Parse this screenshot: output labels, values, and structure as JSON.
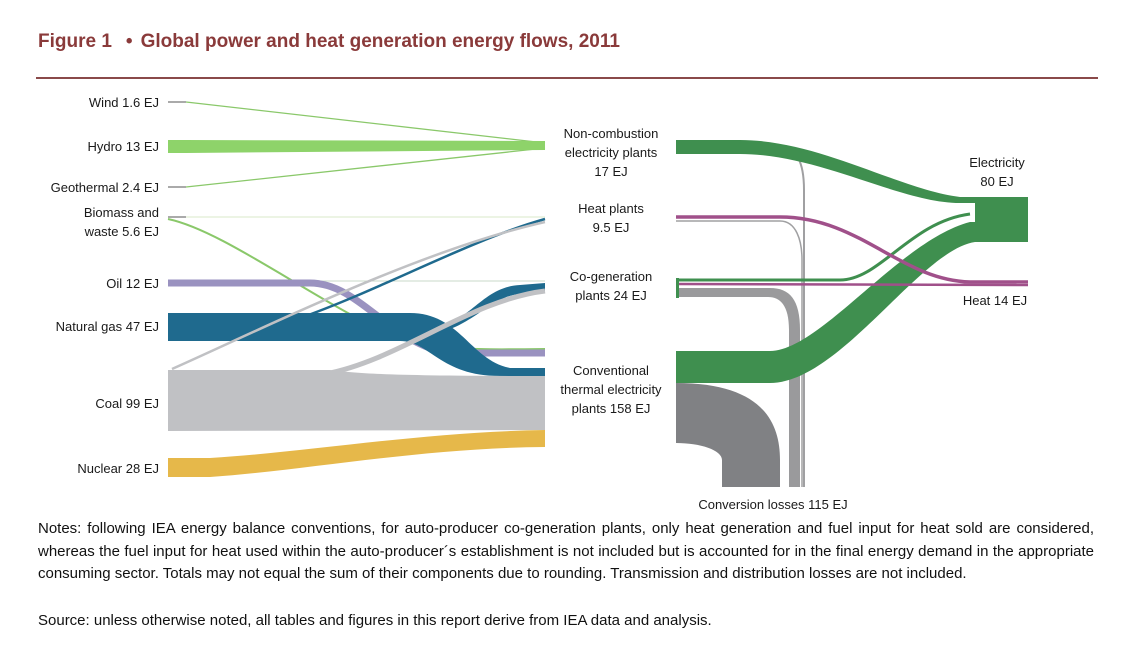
{
  "figure": {
    "number": "Figure 1",
    "bullet": "•",
    "title": "Global power and heat generation energy flows, 2011"
  },
  "sources": [
    {
      "id": "wind",
      "lines": [
        "Wind 1.6 EJ"
      ],
      "value": 1.6,
      "color": "#8ac86a"
    },
    {
      "id": "hydro",
      "lines": [
        "Hydro 13 EJ"
      ],
      "value": 13,
      "color": "#8ed36a"
    },
    {
      "id": "geothermal",
      "lines": [
        "Geothermal 2.4 EJ"
      ],
      "value": 2.4,
      "color": "#8ac86a"
    },
    {
      "id": "biomass",
      "lines": [
        "Biomass and",
        "waste 5.6 EJ"
      ],
      "value": 5.6,
      "color": "#8ac86a"
    },
    {
      "id": "oil",
      "lines": [
        "Oil 12 EJ"
      ],
      "value": 12,
      "color": "#9a92c0"
    },
    {
      "id": "gas",
      "lines": [
        "Natural gas 47 EJ"
      ],
      "value": 47,
      "color": "#1f6a8e"
    },
    {
      "id": "coal",
      "lines": [
        "Coal 99 EJ"
      ],
      "value": 99,
      "color": "#c0c1c4"
    },
    {
      "id": "nuclear",
      "lines": [
        "Nuclear 28 EJ"
      ],
      "value": 28,
      "color": "#e6b84a"
    }
  ],
  "plants": [
    {
      "id": "noncomb",
      "lines": [
        "Non-combustion",
        "electricity plants",
        "17 EJ"
      ],
      "value": 17
    },
    {
      "id": "heatplants",
      "lines": [
        "Heat plants",
        "9.5 EJ"
      ],
      "value": 9.5
    },
    {
      "id": "cogen",
      "lines": [
        "Co-generation",
        "plants 24 EJ"
      ],
      "value": 24
    },
    {
      "id": "conventional",
      "lines": [
        "Conventional",
        "thermal electricity",
        "plants 158 EJ"
      ],
      "value": 158
    }
  ],
  "outputs": [
    {
      "id": "electricity",
      "lines": [
        "Electricity",
        "80 EJ"
      ],
      "value": 80,
      "color": "#3f8f4f"
    },
    {
      "id": "heat",
      "lines": [
        "Heat 14 EJ"
      ],
      "value": 14,
      "color": "#a0508a"
    },
    {
      "id": "losses",
      "lines": [
        "Conversion losses 115 EJ"
      ],
      "value": 115,
      "color": "#808184"
    }
  ],
  "colors": {
    "renewable_green": "#8ac86a",
    "oil_purple": "#9a92c0",
    "gas_blue": "#1f6a8e",
    "coal_grey": "#c0c1c4",
    "nuclear_yellow": "#e6b84a",
    "electricity_green": "#3f8f4f",
    "heat_purple": "#a0508a",
    "loss_grey": "#808184",
    "title_maroon": "#8a3a3a"
  },
  "notes": "Notes: following IEA energy balance conventions, for auto-producer co-generation plants, only heat generation and fuel input for heat sold are considered, whereas the fuel input for heat used within the auto-producer´s establishment is not included but is accounted for in the final energy demand in the appropriate consuming sector. Totals may not equal the sum of their components due to rounding. Transmission and distribution losses are not included.",
  "source": "Source: unless otherwise noted, all tables and figures in this report derive from IEA data and analysis."
}
